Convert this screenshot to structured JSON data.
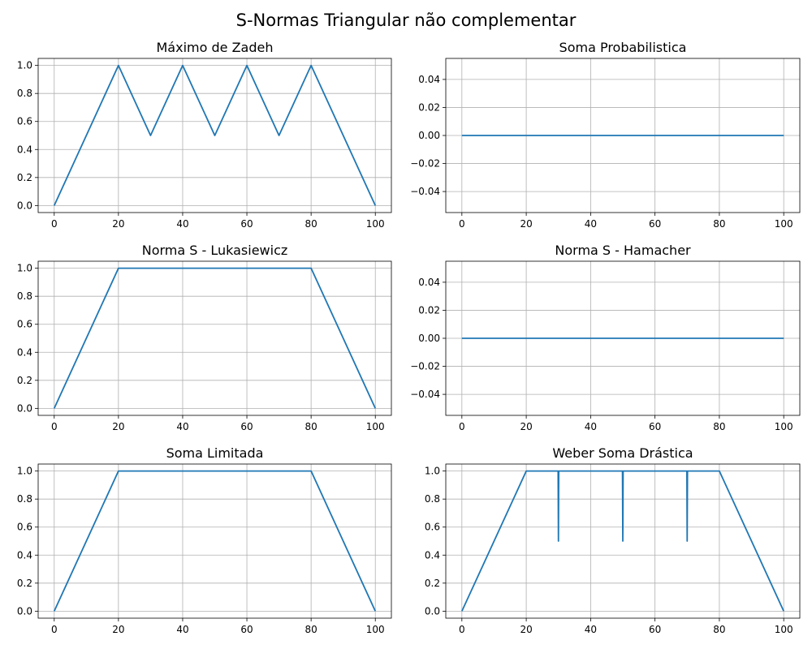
{
  "figure_title": "S-Normas Triangular não complementar",
  "colors": {
    "line": "#1f77b4",
    "grid": "#b0b0b0",
    "axes": "#000000",
    "background": "#ffffff"
  },
  "chart_data": [
    {
      "type": "line",
      "title": "Máximo de Zadeh",
      "xlabel": "",
      "ylabel": "",
      "xlim": [
        -5,
        105
      ],
      "ylim": [
        -0.05,
        1.05
      ],
      "xticks": [
        0,
        20,
        40,
        60,
        80,
        100
      ],
      "yticks": [
        0.0,
        0.2,
        0.4,
        0.6,
        0.8,
        1.0
      ],
      "ytick_labels": [
        "0.0",
        "0.2",
        "0.4",
        "0.6",
        "0.8",
        "1.0"
      ],
      "grid": true,
      "series": [
        {
          "x": [
            0,
            20,
            30,
            40,
            50,
            60,
            70,
            80,
            100
          ],
          "y": [
            0,
            1,
            0.5,
            1,
            0.5,
            1,
            0.5,
            1,
            0
          ]
        }
      ]
    },
    {
      "type": "line",
      "title": "Soma Probabilistica",
      "xlabel": "",
      "ylabel": "",
      "xlim": [
        -5,
        105
      ],
      "ylim": [
        -0.055,
        0.055
      ],
      "xticks": [
        0,
        20,
        40,
        60,
        80,
        100
      ],
      "yticks": [
        -0.04,
        -0.02,
        0.0,
        0.02,
        0.04
      ],
      "ytick_labels": [
        "−0.04",
        "−0.02",
        "0.00",
        "0.02",
        "0.04"
      ],
      "grid": true,
      "series": [
        {
          "x": [
            0,
            100
          ],
          "y": [
            0,
            0
          ]
        }
      ]
    },
    {
      "type": "line",
      "title": "Norma S - Lukasiewicz",
      "xlabel": "",
      "ylabel": "",
      "xlim": [
        -5,
        105
      ],
      "ylim": [
        -0.05,
        1.05
      ],
      "xticks": [
        0,
        20,
        40,
        60,
        80,
        100
      ],
      "yticks": [
        0.0,
        0.2,
        0.4,
        0.6,
        0.8,
        1.0
      ],
      "ytick_labels": [
        "0.0",
        "0.2",
        "0.4",
        "0.6",
        "0.8",
        "1.0"
      ],
      "grid": true,
      "series": [
        {
          "x": [
            0,
            20,
            80,
            100
          ],
          "y": [
            0,
            1,
            1,
            0
          ]
        }
      ]
    },
    {
      "type": "line",
      "title": "Norma S - Hamacher",
      "xlabel": "",
      "ylabel": "",
      "xlim": [
        -5,
        105
      ],
      "ylim": [
        -0.055,
        0.055
      ],
      "xticks": [
        0,
        20,
        40,
        60,
        80,
        100
      ],
      "yticks": [
        -0.04,
        -0.02,
        0.0,
        0.02,
        0.04
      ],
      "ytick_labels": [
        "−0.04",
        "−0.02",
        "0.00",
        "0.02",
        "0.04"
      ],
      "grid": true,
      "series": [
        {
          "x": [
            0,
            100
          ],
          "y": [
            0,
            0
          ]
        }
      ]
    },
    {
      "type": "line",
      "title": "Soma Limitada",
      "xlabel": "",
      "ylabel": "",
      "xlim": [
        -5,
        105
      ],
      "ylim": [
        -0.05,
        1.05
      ],
      "xticks": [
        0,
        20,
        40,
        60,
        80,
        100
      ],
      "yticks": [
        0.0,
        0.2,
        0.4,
        0.6,
        0.8,
        1.0
      ],
      "ytick_labels": [
        "0.0",
        "0.2",
        "0.4",
        "0.6",
        "0.8",
        "1.0"
      ],
      "grid": true,
      "series": [
        {
          "x": [
            0,
            20,
            80,
            100
          ],
          "y": [
            0,
            1,
            1,
            0
          ]
        }
      ]
    },
    {
      "type": "line",
      "title": "Weber Soma Drástica",
      "xlabel": "",
      "ylabel": "",
      "xlim": [
        -5,
        105
      ],
      "ylim": [
        -0.05,
        1.05
      ],
      "xticks": [
        0,
        20,
        40,
        60,
        80,
        100
      ],
      "yticks": [
        0.0,
        0.2,
        0.4,
        0.6,
        0.8,
        1.0
      ],
      "ytick_labels": [
        "0.0",
        "0.2",
        "0.4",
        "0.6",
        "0.8",
        "1.0"
      ],
      "grid": true,
      "series": [
        {
          "x": [
            0,
            20,
            29.9,
            30,
            30.1,
            49.9,
            50,
            50.1,
            69.9,
            70,
            70.1,
            80,
            100
          ],
          "y": [
            0,
            1,
            1,
            0.5,
            1,
            1,
            0.5,
            1,
            1,
            0.5,
            1,
            1,
            0
          ]
        }
      ]
    }
  ]
}
